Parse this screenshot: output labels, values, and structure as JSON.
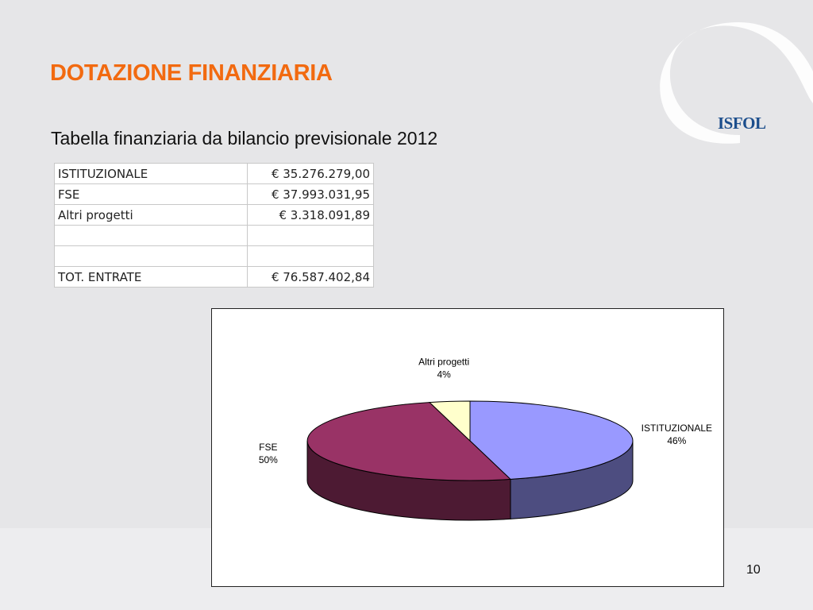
{
  "slide": {
    "title": "DOTAZIONE FINANZIARIA",
    "subtitle": "Tabella finanziaria da bilancio previsionale 2012",
    "page_number": "10",
    "logo_text": "ISFOL"
  },
  "table": {
    "rows": [
      {
        "label": "ISTITUZIONALE",
        "value": "€ 35.276.279,00"
      },
      {
        "label": "FSE",
        "value": "€ 37.993.031,95"
      },
      {
        "label": "Altri progetti",
        "value": "€ 3.318.091,89"
      },
      {
        "label": "",
        "value": ""
      },
      {
        "label": "",
        "value": ""
      },
      {
        "label": "TOT. ENTRATE",
        "value": "€ 76.587.402,84"
      }
    ]
  },
  "colors": {
    "title": "#f26a10",
    "istituzionale": "#9999ff",
    "fse": "#993366",
    "altri": "#ffffcc"
  },
  "chart_data": {
    "type": "pie",
    "style": "3d",
    "categories": [
      "ISTITUZIONALE",
      "FSE",
      "Altri progetti"
    ],
    "values": [
      46,
      50,
      4
    ],
    "labels": [
      "46%",
      "50%",
      "4%"
    ],
    "colors": [
      "#9999ff",
      "#993366",
      "#ffffcc"
    ],
    "legend": "none"
  }
}
